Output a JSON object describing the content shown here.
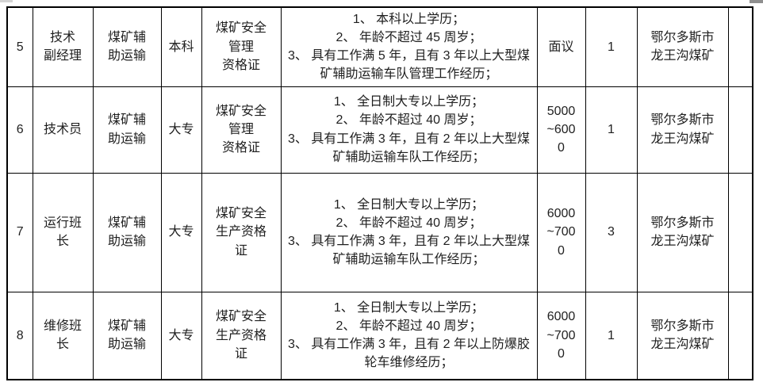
{
  "colors": {
    "table_border": "#000000",
    "text": "#1f1f1f",
    "top_left_artifact": "#d4d4d4",
    "top_right_artifact": "#8f8f8f"
  },
  "table": {
    "rows": [
      {
        "no": "5",
        "position_lines": [
          "技术",
          "副经理"
        ],
        "department_lines": [
          "煤矿辅",
          "助运输"
        ],
        "education": "本科",
        "certificate_lines": [
          "煤矿安全",
          "管理",
          "资格证"
        ],
        "requirements": [
          "1、 本科以上学历；",
          "2、 年龄不超过 45 周岁；",
          "3、 具有工作满 5 年，且有 3 年以上大型煤矿辅助运输车队管理工作经历；"
        ],
        "salary_lines": [
          "面议"
        ],
        "headcount": "1",
        "location_lines": [
          "鄂尔多斯市",
          "龙王沟煤矿"
        ],
        "extra": ""
      },
      {
        "no": "6",
        "position_lines": [
          "技术员"
        ],
        "department_lines": [
          "煤矿辅",
          "助运输"
        ],
        "education": "大专",
        "certificate_lines": [
          "煤矿安全",
          "管理",
          "资格证"
        ],
        "requirements": [
          "1、 全日制大专以上学历；",
          "2、 年龄不超过 40 周岁；",
          "3、 具有工作满 3 年，且有 2 年以上大型煤矿辅助运输车队工作经历；"
        ],
        "salary_lines": [
          "5000",
          "~600",
          "0"
        ],
        "headcount": "1",
        "location_lines": [
          "鄂尔多斯市",
          "龙王沟煤矿"
        ],
        "extra": ""
      },
      {
        "no": "7",
        "position_lines": [
          "运行班",
          "长"
        ],
        "department_lines": [
          "煤矿辅",
          "助运输"
        ],
        "education": "大专",
        "certificate_lines": [
          "煤矿安全",
          "生产资格",
          "证"
        ],
        "requirements": [
          "1、 全日制大专以上学历；",
          "2、 年龄不超过 40 周岁；",
          "3、 具有工作满 3 年，且有 2 年以上大型煤矿辅助运输车队工作经历；"
        ],
        "salary_lines": [
          "6000",
          "~700",
          "0"
        ],
        "headcount": "3",
        "location_lines": [
          "鄂尔多斯市",
          "龙王沟煤矿"
        ],
        "extra": ""
      },
      {
        "no": "8",
        "position_lines": [
          "维修班",
          "长"
        ],
        "department_lines": [
          "煤矿辅",
          "助运输"
        ],
        "education": "大专",
        "certificate_lines": [
          "煤矿安全",
          "生产资格",
          "证"
        ],
        "requirements": [
          "1、 全日制大专以上学历；",
          "2、 年龄不超过 40 周岁；",
          "3、 具有工作满 3 年，且有 2 年以上防爆胶轮车维修经历；"
        ],
        "salary_lines": [
          "6000",
          "~700",
          "0"
        ],
        "headcount": "1",
        "location_lines": [
          "鄂尔多斯市",
          "龙王沟煤矿"
        ],
        "extra": ""
      }
    ]
  }
}
